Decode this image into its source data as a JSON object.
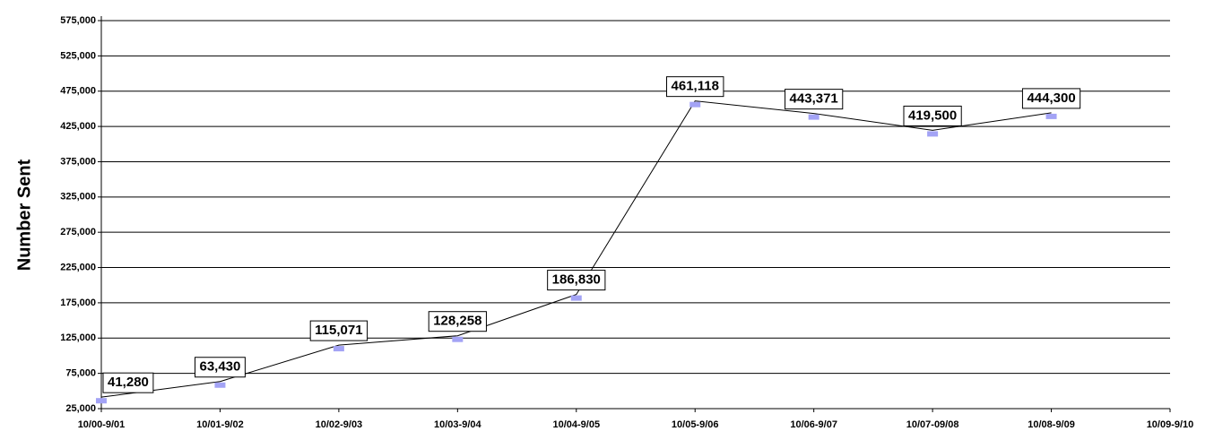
{
  "chart_data": {
    "type": "line",
    "y_label": "Number Sent",
    "categories": [
      "10/00-9/01",
      "10/01-9/02",
      "10/02-9/03",
      "10/03-9/04",
      "10/04-9/05",
      "10/05-9/06",
      "10/06-9/07",
      "10/07-09/08",
      "10/08-9/09",
      "10/09-9/10"
    ],
    "series": [
      {
        "name": "Number Sent",
        "color": "#000000",
        "marker_color": "#a3a3f5",
        "values": [
          41280,
          63430,
          115071,
          128258,
          186830,
          461118,
          443371,
          419500,
          444300,
          null
        ],
        "value_labels": [
          "41,280",
          "63,430",
          "115,071",
          "128,258",
          "186,830",
          "461,118",
          "443,371",
          "419,500",
          "444,300",
          null
        ]
      }
    ],
    "ylim": [
      25000,
      575000
    ],
    "yticks": [
      {
        "value": 25000,
        "label": "25,000"
      },
      {
        "value": 75000,
        "label": "75,000"
      },
      {
        "value": 125000,
        "label": "125,000"
      },
      {
        "value": 175000,
        "label": "175,000"
      },
      {
        "value": 225000,
        "label": "225,000"
      },
      {
        "value": 275000,
        "label": "275,000"
      },
      {
        "value": 325000,
        "label": "325,000"
      },
      {
        "value": 375000,
        "label": "375,000"
      },
      {
        "value": 425000,
        "label": "425,000"
      },
      {
        "value": 475000,
        "label": "475,000"
      },
      {
        "value": 525000,
        "label": "525,000"
      },
      {
        "value": 575000,
        "label": "575,000"
      }
    ],
    "grid": true
  }
}
